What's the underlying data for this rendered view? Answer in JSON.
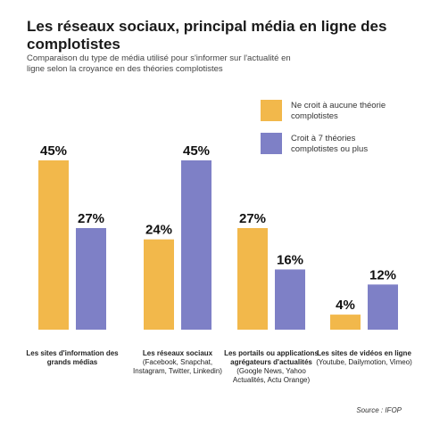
{
  "chart_data": {
    "type": "bar",
    "title": "Les réseaux sociaux, principal média en ligne des complotistes",
    "subtitle": "Comparaison du type de média utilisé pour s'informer sur l'actualité en ligne selon la croyance en des théories complotistes",
    "categories": [
      "Les sites d'information des grands médias",
      "Les réseaux sociaux",
      "Les portails ou applications agrégateurs d'actualités",
      "Les sites de vidéos en ligne"
    ],
    "category_notes": [
      null,
      "(Facebook, Snapchat, Instagram, Twitter, Linkedin)",
      "(Google News, Yahoo Actualités, Actu Orange)",
      "(Youtube, Dailymotion, Vimeo)"
    ],
    "series": [
      {
        "name": "Ne croit à aucune théorie complotistes",
        "color": "#f2b84b",
        "values": [
          45,
          24,
          27,
          4
        ],
        "value_labels": [
          "45%",
          "24%",
          "27%",
          "4%"
        ]
      },
      {
        "name": "Croit à 7 théories complotistes ou plus",
        "color": "#7e80c6",
        "values": [
          27,
          45,
          16,
          12
        ],
        "value_labels": [
          "27%",
          "45%",
          "16%",
          "12%"
        ]
      }
    ],
    "source": "Source : IFOP"
  }
}
